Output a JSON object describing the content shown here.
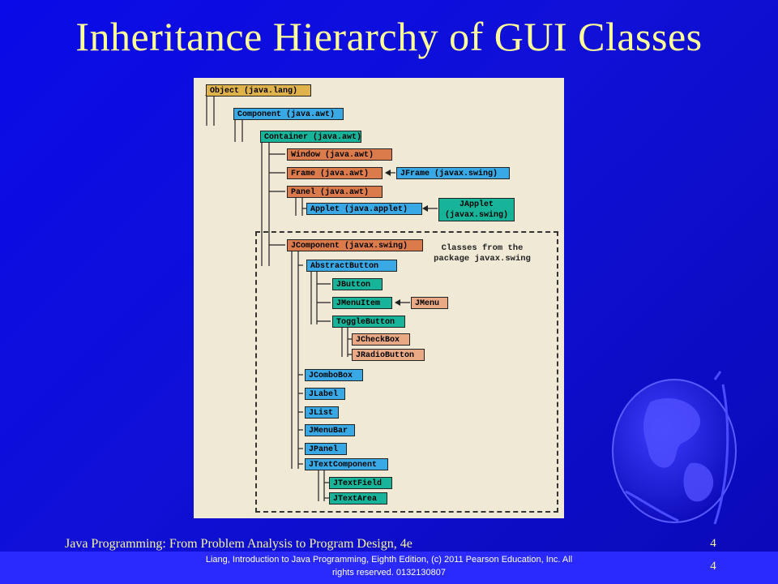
{
  "slide": {
    "title": "Inheritance Hierarchy of GUI Classes",
    "footer": "Java Programming: From Problem Analysis to Program Design, 4e",
    "page_number_top": "4",
    "page_number_bottom": "4",
    "copyright_line1": "Liang, Introduction to Java Programming, Eighth Edition, (c) 2011 Pearson Education, Inc. All",
    "copyright_line2": "rights reserved. 0132130807"
  },
  "diagram": {
    "swing_note_line1": "Classes from the",
    "swing_note_line2": "package javax.swing",
    "colors": {
      "gold": "#e0b24a",
      "blue": "#39a9e6",
      "teal": "#18b49a",
      "orange": "#db7b4b",
      "peach": "#e9a984"
    },
    "nodes": [
      {
        "id": "object",
        "label": "Object (java.lang)",
        "color": "gold"
      },
      {
        "id": "component",
        "label": "Component (java.awt)",
        "color": "blue"
      },
      {
        "id": "container",
        "label": "Container (java.awt)",
        "color": "teal"
      },
      {
        "id": "window",
        "label": "Window (java.awt)",
        "color": "orange"
      },
      {
        "id": "frame",
        "label": "Frame (java.awt)",
        "color": "orange"
      },
      {
        "id": "jframe",
        "label": "JFrame (javax.swing)",
        "color": "blue"
      },
      {
        "id": "panel",
        "label": "Panel (java.awt)",
        "color": "orange"
      },
      {
        "id": "applet",
        "label": "Applet (java.applet)",
        "color": "blue"
      },
      {
        "id": "japplet",
        "label": "JApplet\n(javax.swing)",
        "color": "teal"
      },
      {
        "id": "jcomponent",
        "label": "JComponent (javax.swing)",
        "color": "orange"
      },
      {
        "id": "abstractbutton",
        "label": "AbstractButton",
        "color": "blue"
      },
      {
        "id": "jbutton",
        "label": "JButton",
        "color": "teal"
      },
      {
        "id": "jmenuitem",
        "label": "JMenuItem",
        "color": "teal"
      },
      {
        "id": "jmenu",
        "label": "JMenu",
        "color": "peach"
      },
      {
        "id": "togglebutton",
        "label": "ToggleButton",
        "color": "teal"
      },
      {
        "id": "jcheckbox",
        "label": "JCheckBox",
        "color": "peach"
      },
      {
        "id": "jradiobutton",
        "label": "JRadioButton",
        "color": "peach"
      },
      {
        "id": "jcombobox",
        "label": "JComboBox",
        "color": "blue"
      },
      {
        "id": "jlabel",
        "label": "JLabel",
        "color": "blue"
      },
      {
        "id": "jlist",
        "label": "JList",
        "color": "blue"
      },
      {
        "id": "jmenubar",
        "label": "JMenuBar",
        "color": "blue"
      },
      {
        "id": "jpanel",
        "label": "JPanel",
        "color": "blue"
      },
      {
        "id": "jtextcomponent",
        "label": "JTextComponent",
        "color": "blue"
      },
      {
        "id": "jtextfield",
        "label": "JTextField",
        "color": "teal"
      },
      {
        "id": "jtextarea",
        "label": "JTextArea",
        "color": "teal"
      }
    ]
  }
}
